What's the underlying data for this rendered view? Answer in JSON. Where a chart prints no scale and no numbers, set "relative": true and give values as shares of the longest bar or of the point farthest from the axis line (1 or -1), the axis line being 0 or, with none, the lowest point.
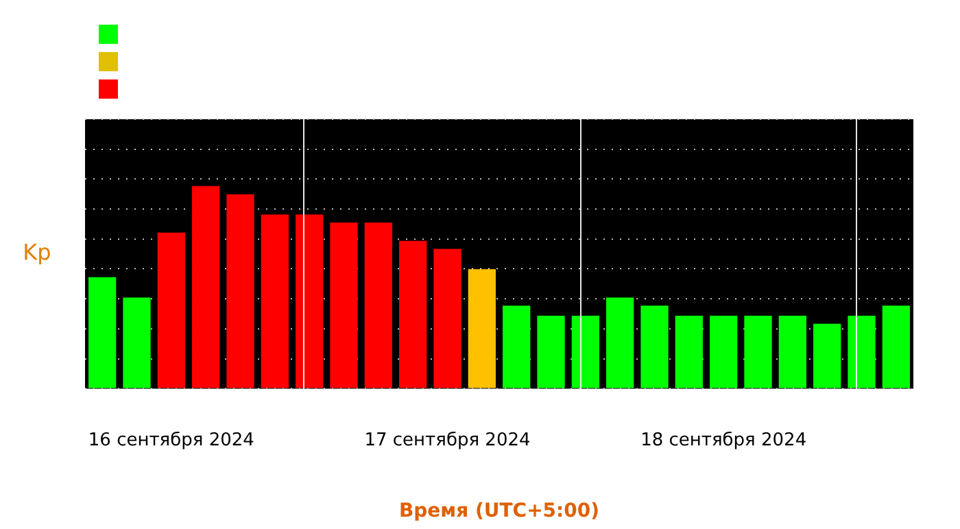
{
  "chart_data": {
    "type": "bar",
    "relative": true,
    "xlabel": "Время (UTC+5:00)",
    "ylabel": "Kp",
    "categories": [
      null,
      null,
      "16 сентября 2024",
      null,
      null,
      null,
      null,
      null,
      null,
      null,
      "17 сентября 2024",
      null,
      null,
      null,
      null,
      null,
      null,
      null,
      "18 сентября 2024",
      null,
      null,
      null,
      null,
      null
    ],
    "values": [
      0.55,
      0.45,
      0.77,
      1,
      0.96,
      0.86,
      0.86,
      0.82,
      0.82,
      0.73,
      0.69,
      0.59,
      0.41,
      0.36,
      0.36,
      0.45,
      0.41,
      0.36,
      0.36,
      0.36,
      0.36,
      0.32,
      0.36,
      0.41
    ],
    "colors": [
      "#00ff00",
      "#00ff00",
      "#ff0000",
      "#ff0000",
      "#ff0000",
      "#ff0000",
      "#ff0000",
      "#ff0000",
      "#ff0000",
      "#ff0000",
      "#ff0000",
      "#ffc000",
      "#00ff00",
      "#00ff00",
      "#00ff00",
      "#00ff00",
      "#00ff00",
      "#00ff00",
      "#00ff00",
      "#00ff00",
      "#00ff00",
      "#00ff00",
      "#00ff00",
      "#00ff00"
    ],
    "grid": "y"
  }
}
